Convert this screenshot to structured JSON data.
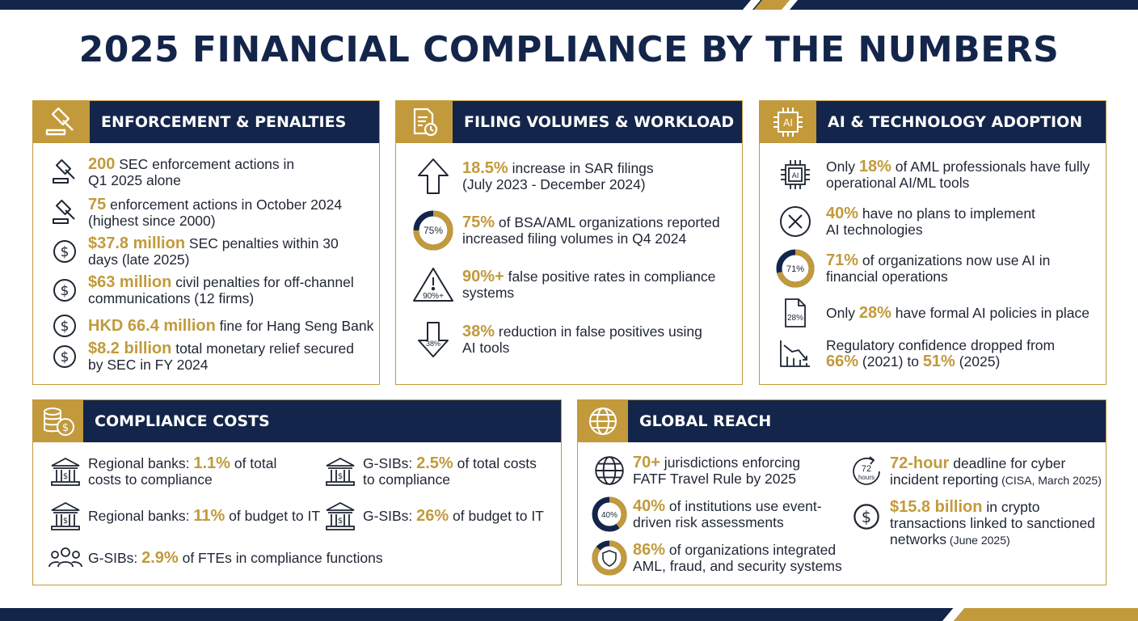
{
  "title": "2025 FINANCIAL COMPLIANCE BY THE NUMBERS",
  "colors": {
    "navy": "#13254a",
    "gold": "#c29a3c",
    "text": "#1f2633"
  },
  "enforcement": {
    "header": "ENFORCEMENT & PENALTIES",
    "header_icon": "gavel-icon",
    "items": [
      {
        "icon": "gavel-icon",
        "value": "200",
        "text": " SEC enforcement actions in",
        "text2": "Q1 2025 alone"
      },
      {
        "icon": "gavel-icon",
        "value": "75",
        "text": " enforcement actions in October 2024",
        "text2": "(highest since 2000)"
      },
      {
        "icon": "dollar-circle-icon",
        "value": "$37.8 million",
        "text": " SEC penalties within 30",
        "text2": "days (late 2025)"
      },
      {
        "icon": "dollar-circle-icon",
        "value": "$63 million",
        "text": " civil penalties for off-channel",
        "text2": "communications (12 firms)"
      },
      {
        "icon": "dollar-circle-icon",
        "value": "HKD 66.4 million",
        "text": " fine for Hang Seng Bank",
        "text2": ""
      },
      {
        "icon": "dollar-circle-icon",
        "value": "$8.2 billion",
        "text": " total monetary relief secured",
        "text2": "by SEC in FY 2024"
      }
    ]
  },
  "filing": {
    "header": "FILING VOLUMES & WORKLOAD",
    "header_icon": "document-clock-icon",
    "items": [
      {
        "icon": "arrow-up-icon",
        "icon_label": "",
        "value": "18.5%",
        "text": " increase in SAR filings",
        "text2": "(July 2023 - December 2024)"
      },
      {
        "icon": "donut-75-icon",
        "icon_label": "75%",
        "value": "75%",
        "text": " of BSA/AML organizations reported",
        "text2": "increased filing volumes in Q4 2024"
      },
      {
        "icon": "warning-triangle-icon",
        "icon_label": "90%+",
        "value": "90%+",
        "text": " false positive rates in compliance",
        "text2": "systems"
      },
      {
        "icon": "arrow-down-icon",
        "icon_label": "38%",
        "value": "38%",
        "text": " reduction in false positives using",
        "text2": "AI tools"
      }
    ]
  },
  "ai": {
    "header": "AI & TECHNOLOGY ADOPTION",
    "header_icon": "ai-chip-icon",
    "header_icon_label": "AI",
    "items": [
      {
        "icon": "ai-chip-icon",
        "icon_label": "AI",
        "pre": "Only ",
        "value": "18%",
        "text": " of AML professionals have fully",
        "text2": "operational AI/ML tools"
      },
      {
        "icon": "x-circle-icon",
        "icon_label": "",
        "pre": "",
        "value": "40%",
        "text": " have no plans to implement",
        "text2": "AI technologies"
      },
      {
        "icon": "donut-71-icon",
        "icon_label": "71%",
        "pre": "",
        "value": "71%",
        "text": " of organizations now use AI in",
        "text2": "financial operations"
      },
      {
        "icon": "document-icon",
        "icon_label": "28%",
        "pre": "Only ",
        "value": "28%",
        "text": " have formal AI policies in place",
        "text2": ""
      }
    ],
    "last": {
      "icon": "declining-chart-icon",
      "line1": "Regulatory confidence dropped from",
      "v1": "66%",
      "t1": " (2021) to ",
      "v2": "51%",
      "t2": " (2025)"
    }
  },
  "costs": {
    "header": "COMPLIANCE COSTS",
    "header_icon": "coins-dollar-icon",
    "items": [
      {
        "icon": "bank-icon",
        "pre": "Regional banks: ",
        "value": "1.1%",
        "text": " of total",
        "text2": "costs to compliance"
      },
      {
        "icon": "bank-icon",
        "pre": "G-SIBs: ",
        "value": "2.5%",
        "text": " of total costs",
        "text2": "to compliance"
      },
      {
        "icon": "bank-icon",
        "pre": "Regional banks: ",
        "value": "11%",
        "text": " of budget to IT",
        "text2": ""
      },
      {
        "icon": "bank-icon",
        "pre": "G-SIBs: ",
        "value": "26%",
        "text": " of budget to IT",
        "text2": ""
      },
      {
        "icon": "people-icon",
        "pre": "G-SIBs: ",
        "value": "2.9%",
        "text": " of FTEs in compliance functions",
        "text2": ""
      }
    ]
  },
  "global": {
    "header": "GLOBAL REACH",
    "header_icon": "globe-icon",
    "items": [
      {
        "icon": "globe-icon",
        "icon_label": "",
        "value": "70+",
        "text": " jurisdictions enforcing",
        "text2": "FATF Travel Rule by 2025",
        "small": ""
      },
      {
        "icon": "donut-40-icon",
        "icon_label": "40%",
        "value": "40%",
        "text": " of institutions use event-",
        "text2": "driven risk assessments",
        "small": ""
      },
      {
        "icon": "shield-circle-icon",
        "icon_label": "",
        "value": "86%",
        "text": " of organizations integrated",
        "text2": "AML, fraud, and security systems",
        "small": ""
      },
      {
        "icon": "clock-72-icon",
        "icon_label": "72",
        "icon_label2": "hours",
        "value": "72-hour",
        "text": " deadline for cyber",
        "text2": "incident reporting",
        "small": " (CISA, March 2025)"
      },
      {
        "icon": "dollar-circle-icon",
        "icon_label": "",
        "value": "$15.8 billion",
        "text": " in crypto",
        "text2": "transactions linked to sanctioned",
        "text3": "networks",
        "small": " (June 2025)"
      }
    ]
  }
}
